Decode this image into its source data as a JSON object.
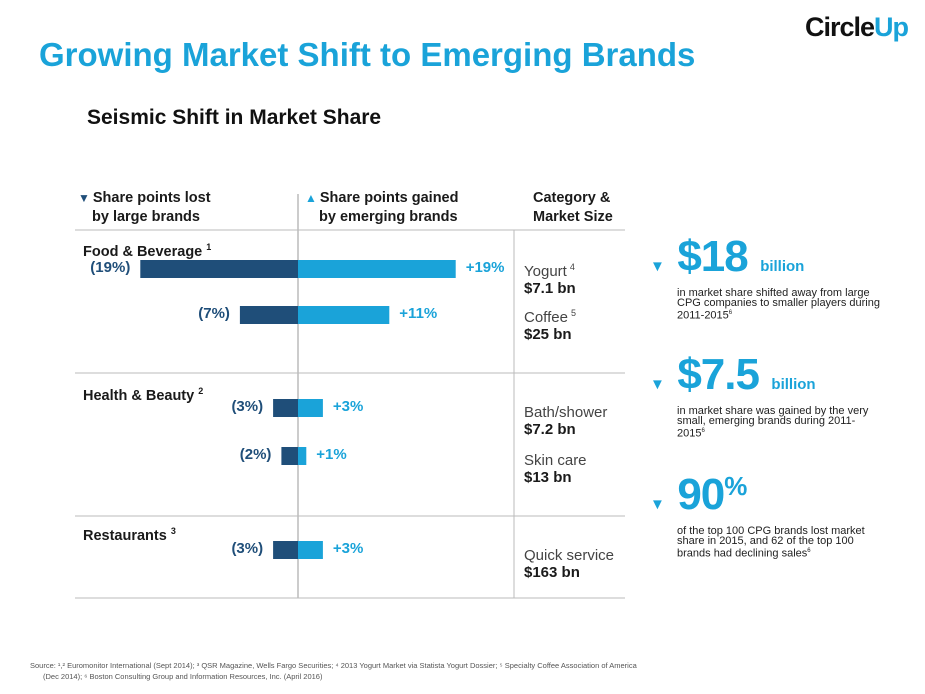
{
  "logo": {
    "part1": "Circle",
    "part2": "Up"
  },
  "title": "Growing Market Shift to Emerging Brands",
  "subtitle": "Seismic Shift in Market Share",
  "headers": {
    "lost_line1": "Share points lost",
    "lost_line2": "by large brands",
    "gained_line1": "Share points gained",
    "gained_line2": "by emerging brands",
    "category_line1": "Category &",
    "category_line2": "Market Size"
  },
  "groups": [
    {
      "name": "Food & Beverage",
      "footnote": "1"
    },
    {
      "name": "Health & Beauty",
      "footnote": "2"
    },
    {
      "name": "Restaurants",
      "footnote": "3"
    }
  ],
  "markets": [
    {
      "name": "Yogurt",
      "footnote": "4",
      "size": "$7.1 bn"
    },
    {
      "name": "Coffee",
      "footnote": "5",
      "size": "$25 bn"
    },
    {
      "name": "Bath/shower",
      "footnote": "",
      "size": "$7.2 bn"
    },
    {
      "name": "Skin care",
      "footnote": "",
      "size": "$13 bn"
    },
    {
      "name": "Quick service",
      "footnote": "",
      "size": "$163 bn"
    }
  ],
  "stats": [
    {
      "value": "$18",
      "unit": "billion",
      "desc": "in market share shifted away from large CPG companies to smaller players during 2011-2015",
      "footnote": "6"
    },
    {
      "value": "$7.5",
      "unit": "billion",
      "desc": "in market share was gained by the very small, emerging brands during 2011-2015",
      "footnote": "6"
    },
    {
      "value": "90",
      "unit": "%",
      "desc": "of the top 100 CPG brands lost market share in 2015, and 62 of the top 100 brands had declining sales",
      "footnote": "6"
    }
  ],
  "footer": {
    "line1": "Source: ¹,² Euromonitor International (Sept 2014); ³ QSR Magazine, Wells Fargo Securities; ⁴ 2013 Yogurt Market via Statista Yogurt Dossier; ⁵ Specialty Coffee Association of America",
    "line2": "(Dec 2014); ⁶ Boston Consulting Group and Information Resources, Inc. (April 2016)"
  },
  "chart_data": {
    "type": "bar",
    "categories": [
      "Yogurt",
      "Coffee",
      "Bath/shower",
      "Skin care",
      "Quick service"
    ],
    "series": [
      {
        "name": "Share points lost by large brands",
        "values": [
          -19,
          -7,
          -3,
          -2,
          -3
        ],
        "labels": [
          "(19%)",
          "(7%)",
          "(3%)",
          "(2%)",
          "(3%)"
        ],
        "color": "#1f4e79"
      },
      {
        "name": "Share points gained by emerging brands",
        "values": [
          19,
          11,
          3,
          1,
          3
        ],
        "labels": [
          "+19%",
          "+11%",
          "+3%",
          "+1%",
          "+3%"
        ],
        "color": "#1aa3d9"
      }
    ],
    "xlim": [
      -19,
      19
    ]
  }
}
